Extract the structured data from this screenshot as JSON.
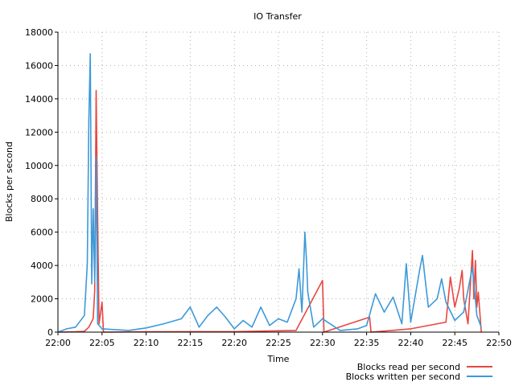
{
  "chart_data": {
    "type": "line",
    "title": "IO Transfer",
    "xlabel": "Time",
    "ylabel": "Blocks per second",
    "xlim": [
      "22:00",
      "22:50"
    ],
    "ylim": [
      0,
      18000
    ],
    "x_ticks": [
      "22:00",
      "22:05",
      "22:10",
      "22:15",
      "22:20",
      "22:25",
      "22:30",
      "22:35",
      "22:40",
      "22:45",
      "22:50"
    ],
    "y_ticks": [
      0,
      2000,
      4000,
      6000,
      8000,
      10000,
      12000,
      14000,
      16000,
      18000
    ],
    "grid": true,
    "legend_placement": "bottom-right",
    "series": [
      {
        "name": "Blocks read per second",
        "color": "#e8473f",
        "points": [
          [
            "22:00",
            0
          ],
          [
            "22:02",
            20
          ],
          [
            "22:03",
            50
          ],
          [
            "22:03:30",
            300
          ],
          [
            "22:04",
            800
          ],
          [
            "22:04:10",
            2500
          ],
          [
            "22:04:20",
            14500
          ],
          [
            "22:04:30",
            7000
          ],
          [
            "22:04:40",
            500
          ],
          [
            "22:05",
            1800
          ],
          [
            "22:05:10",
            0
          ],
          [
            "22:10",
            20
          ],
          [
            "22:20",
            30
          ],
          [
            "22:27",
            100
          ],
          [
            "22:30",
            3100
          ],
          [
            "22:30:10",
            0
          ],
          [
            "22:35:20",
            900
          ],
          [
            "22:35:30",
            0
          ],
          [
            "22:40",
            200
          ],
          [
            "22:44",
            600
          ],
          [
            "22:44:30",
            3300
          ],
          [
            "22:45",
            1500
          ],
          [
            "22:45:30",
            2600
          ],
          [
            "22:45:50",
            3700
          ],
          [
            "22:46",
            2000
          ],
          [
            "22:46:30",
            500
          ],
          [
            "22:47",
            4900
          ],
          [
            "22:47:10",
            2000
          ],
          [
            "22:47:20",
            4300
          ],
          [
            "22:47:30",
            1500
          ],
          [
            "22:47:40",
            2400
          ],
          [
            "22:48",
            0
          ]
        ]
      },
      {
        "name": "Blocks written per second",
        "color": "#3b9ad9",
        "points": [
          [
            "22:00",
            0
          ],
          [
            "22:01",
            200
          ],
          [
            "22:02",
            300
          ],
          [
            "22:03",
            1000
          ],
          [
            "22:03:20",
            4100
          ],
          [
            "22:03:30",
            12700
          ],
          [
            "22:03:40",
            16700
          ],
          [
            "22:03:50",
            2900
          ],
          [
            "22:04",
            7400
          ],
          [
            "22:04:10",
            3000
          ],
          [
            "22:04:20",
            10500
          ],
          [
            "22:04:30",
            500
          ],
          [
            "22:05",
            200
          ],
          [
            "22:08",
            100
          ],
          [
            "22:10",
            250
          ],
          [
            "22:12",
            500
          ],
          [
            "22:14",
            800
          ],
          [
            "22:15",
            1500
          ],
          [
            "22:16",
            300
          ],
          [
            "22:17",
            1000
          ],
          [
            "22:18",
            1500
          ],
          [
            "22:19",
            900
          ],
          [
            "22:20",
            200
          ],
          [
            "22:21",
            700
          ],
          [
            "22:22",
            300
          ],
          [
            "22:23",
            1500
          ],
          [
            "22:24",
            400
          ],
          [
            "22:25",
            800
          ],
          [
            "22:26",
            600
          ],
          [
            "22:27",
            2000
          ],
          [
            "22:27:20",
            3800
          ],
          [
            "22:27:40",
            1200
          ],
          [
            "22:28",
            6000
          ],
          [
            "22:28:10",
            4500
          ],
          [
            "22:28:20",
            2400
          ],
          [
            "22:29",
            300
          ],
          [
            "22:30",
            800
          ],
          [
            "22:32",
            100
          ],
          [
            "22:34",
            200
          ],
          [
            "22:35",
            400
          ],
          [
            "22:36",
            2300
          ],
          [
            "22:37",
            1200
          ],
          [
            "22:38",
            2100
          ],
          [
            "22:39",
            500
          ],
          [
            "22:39:30",
            4100
          ],
          [
            "22:40",
            600
          ],
          [
            "22:41",
            3700
          ],
          [
            "22:41:20",
            4600
          ],
          [
            "22:42",
            1500
          ],
          [
            "22:43",
            2000
          ],
          [
            "22:43:30",
            3200
          ],
          [
            "22:44",
            1800
          ],
          [
            "22:45",
            700
          ],
          [
            "22:46",
            1200
          ],
          [
            "22:47",
            3900
          ],
          [
            "22:47:30",
            1000
          ],
          [
            "22:48",
            300
          ]
        ]
      }
    ]
  }
}
